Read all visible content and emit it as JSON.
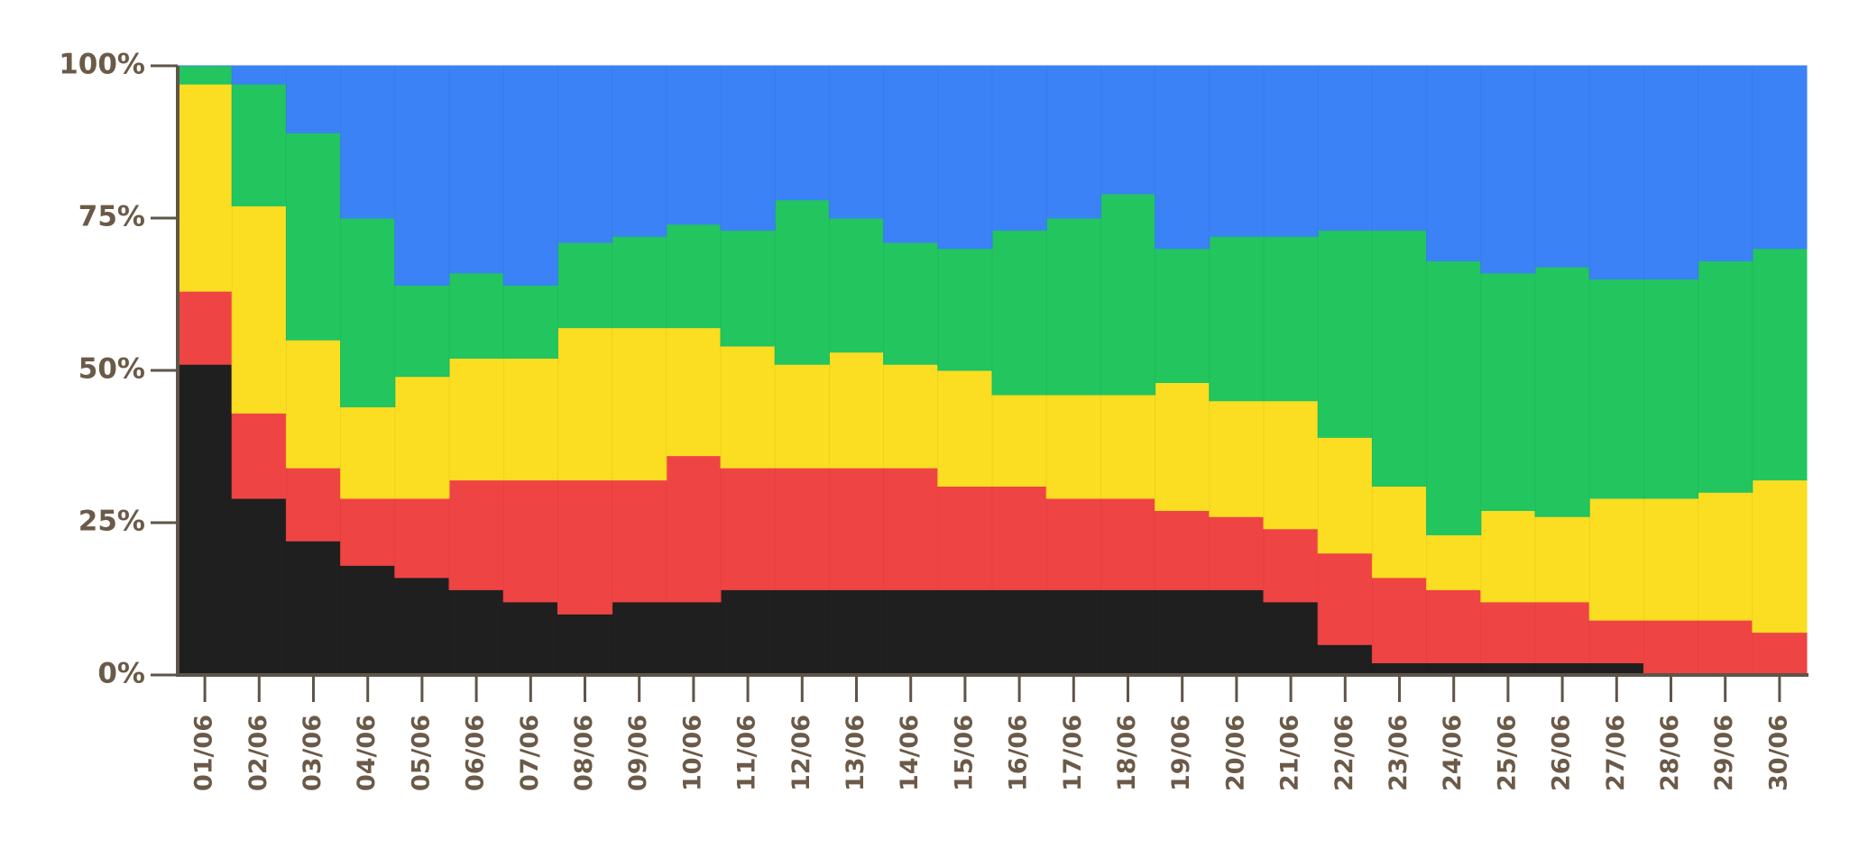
{
  "chart_data": {
    "type": "area",
    "stacked": "percent",
    "step": true,
    "title": "",
    "xlabel": "",
    "ylabel": "",
    "ylim": [
      0,
      100
    ],
    "yticks": [
      "0%",
      "25%",
      "50%",
      "75%",
      "100%"
    ],
    "ytick_values": [
      0,
      25,
      50,
      75,
      100
    ],
    "categories": [
      "01/06",
      "02/06",
      "03/06",
      "04/06",
      "05/06",
      "06/06",
      "07/06",
      "08/06",
      "09/06",
      "10/06",
      "11/06",
      "12/06",
      "13/06",
      "14/06",
      "15/06",
      "16/06",
      "17/06",
      "18/06",
      "19/06",
      "20/06",
      "21/06",
      "22/06",
      "23/06",
      "24/06",
      "25/06",
      "26/06",
      "27/06",
      "28/06",
      "29/06",
      "30/06"
    ],
    "grid": false,
    "legend": "none",
    "series": [
      {
        "color": "#1f1f1f",
        "values": [
          51,
          29,
          22,
          18,
          16,
          14,
          12,
          10,
          12,
          12,
          14,
          14,
          14,
          14,
          14,
          14,
          14,
          14,
          14,
          14,
          12,
          5,
          2,
          2,
          2,
          2,
          2,
          0,
          0,
          0
        ]
      },
      {
        "color": "#ef4444",
        "values": [
          12,
          14,
          12,
          11,
          13,
          18,
          20,
          22,
          20,
          24,
          20,
          20,
          20,
          20,
          17,
          17,
          15,
          15,
          13,
          12,
          12,
          15,
          14,
          12,
          10,
          10,
          7,
          9,
          9,
          7
        ]
      },
      {
        "color": "#fbdd22",
        "values": [
          34,
          34,
          21,
          15,
          20,
          20,
          20,
          25,
          25,
          21,
          20,
          17,
          19,
          17,
          19,
          15,
          17,
          17,
          21,
          19,
          21,
          19,
          15,
          9,
          15,
          14,
          20,
          20,
          21,
          25
        ]
      },
      {
        "color": "#22c55e",
        "values": [
          3,
          20,
          34,
          31,
          15,
          14,
          12,
          14,
          15,
          17,
          19,
          27,
          22,
          20,
          20,
          27,
          29,
          33,
          22,
          27,
          27,
          34,
          42,
          45,
          39,
          41,
          36,
          36,
          38,
          38
        ]
      },
      {
        "color": "#3b82f6",
        "values": [
          0,
          3,
          11,
          25,
          36,
          34,
          36,
          29,
          28,
          26,
          27,
          22,
          25,
          29,
          30,
          27,
          25,
          21,
          30,
          28,
          28,
          27,
          27,
          32,
          34,
          33,
          35,
          35,
          32,
          30
        ]
      }
    ]
  },
  "colors": {
    "axis": "#5e5448",
    "tick_label": "#6b5a48",
    "background": "#ffffff"
  }
}
